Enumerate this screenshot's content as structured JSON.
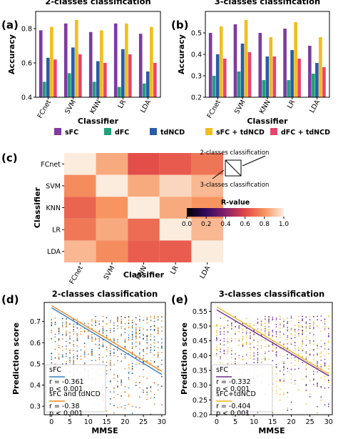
{
  "panel_labels": [
    "(a)",
    "(b)",
    "(c)",
    "(d)",
    "(e)"
  ],
  "colors": {
    "sFC": "#7e3b9f",
    "dFC": "#21a07c",
    "tdNCD": "#2b5ca8",
    "sFC + tdNCD": "#f3be1c",
    "dFC + tdNCD": "#e8456e",
    "scatter_sfc": "#3a7ec0",
    "scatter_combo": "#ef8a22",
    "e_line_sfc": "#6b2d8c",
    "e_line_combo": "#f0b31d"
  },
  "legend_a_b": [
    "sFC",
    "dFC",
    "tdNCD",
    "sFC + tdNCD",
    "dFC + tdNCD"
  ],
  "triangle_legend": {
    "top": "2-classes classification",
    "bottom": "3-classes classification"
  },
  "chart_data": [
    {
      "type": "bar",
      "title": "2-classes classification",
      "xlabel": "Classifier",
      "ylabel": "Accuracy",
      "ylim": [
        0.4,
        0.9
      ],
      "yticks": [
        "0.4",
        "0.6",
        "0.8"
      ],
      "categories": [
        "FCnet",
        "SVM",
        "KNN",
        "LR",
        "LDA"
      ],
      "series": [
        {
          "name": "sFC",
          "values": [
            0.79,
            0.83,
            0.78,
            0.83,
            0.77
          ]
        },
        {
          "name": "dFC",
          "values": [
            0.49,
            0.54,
            0.49,
            0.46,
            0.48
          ]
        },
        {
          "name": "tdNCD",
          "values": [
            0.63,
            0.69,
            0.61,
            0.68,
            0.55
          ]
        },
        {
          "name": "sFC + tdNCD",
          "values": [
            0.81,
            0.85,
            0.79,
            0.83,
            0.81
          ]
        },
        {
          "name": "dFC + tdNCD",
          "values": [
            0.62,
            0.65,
            0.6,
            0.65,
            0.6
          ]
        }
      ]
    },
    {
      "type": "bar",
      "title": "3-classes classification",
      "xlabel": "Classifier",
      "ylabel": "Accuracy",
      "ylim": [
        0.2,
        0.6
      ],
      "yticks": [
        "0.2",
        "0.3",
        "0.4",
        "0.5"
      ],
      "categories": [
        "FCnet",
        "SVM",
        "KNN",
        "LR",
        "LDA"
      ],
      "series": [
        {
          "name": "sFC",
          "values": [
            0.5,
            0.54,
            0.5,
            0.52,
            0.44
          ]
        },
        {
          "name": "dFC",
          "values": [
            0.3,
            0.32,
            0.28,
            0.28,
            0.31
          ]
        },
        {
          "name": "tdNCD",
          "values": [
            0.4,
            0.45,
            0.39,
            0.42,
            0.36
          ]
        },
        {
          "name": "sFC + tdNCD",
          "values": [
            0.53,
            0.56,
            0.48,
            0.55,
            0.48
          ]
        },
        {
          "name": "dFC + tdNCD",
          "values": [
            0.38,
            0.41,
            0.39,
            0.38,
            0.34
          ]
        }
      ]
    },
    {
      "type": "heatmap",
      "xlabel": "Classifier",
      "ylabel": "Classifier",
      "colorbar_label": "R-value",
      "colorbar_ticks": [
        "0.0",
        "0.2",
        "0.4",
        "0.6",
        "0.8",
        "1.0"
      ],
      "x": [
        "FCnet",
        "SVM",
        "KNN",
        "LR",
        "LDA"
      ],
      "y": [
        "FCnet",
        "SVM",
        "KNN",
        "LR",
        "LDA"
      ],
      "values": [
        [
          1.0,
          0.85,
          0.62,
          0.65,
          0.72
        ],
        [
          0.78,
          1.0,
          0.85,
          0.95,
          0.88
        ],
        [
          0.68,
          0.8,
          1.0,
          0.85,
          0.8
        ],
        [
          0.73,
          0.85,
          0.7,
          1.0,
          0.88
        ],
        [
          0.88,
          0.78,
          0.66,
          0.66,
          1.0
        ]
      ]
    },
    {
      "type": "scatter",
      "title": "2-classes classification",
      "xlabel": "MMSE",
      "ylabel": "Prediction score",
      "xlim": [
        -2,
        31
      ],
      "ylim": [
        0.26,
        0.79
      ],
      "xticks": [
        "0",
        "5",
        "10",
        "15",
        "20",
        "25",
        "30"
      ],
      "yticks": [
        "0.3",
        "0.4",
        "0.5",
        "0.6",
        "0.7"
      ],
      "series": [
        {
          "name": "sFC",
          "stats": [
            "r = -0.361",
            "p < 0.001"
          ],
          "fit": [
            [
              0,
              0.765
            ],
            [
              30,
              0.45
            ]
          ]
        },
        {
          "name": "sFC and tdNCD",
          "stats": [
            "r = -0.38",
            "p < 0.001"
          ],
          "fit": [
            [
              0,
              0.775
            ],
            [
              30,
              0.465
            ]
          ]
        }
      ]
    },
    {
      "type": "scatter",
      "title": "3-classes classification",
      "xlabel": "MMSE",
      "ylabel": "Prediction score",
      "xlim": [
        -1.5,
        31
      ],
      "ylim": [
        0.2,
        0.58
      ],
      "xticks": [
        "0",
        "5",
        "10",
        "15",
        "20",
        "25",
        "30"
      ],
      "yticks": [
        "0.20",
        "0.25",
        "0.30",
        "0.35",
        "0.40",
        "0.45",
        "0.50",
        "0.55"
      ],
      "series": [
        {
          "name": "sFC",
          "stats": [
            "r = -0.332",
            "p < 0.001"
          ],
          "fit": [
            [
              0,
              0.555
            ],
            [
              30,
              0.332
            ]
          ]
        },
        {
          "name": "sFC+tdNCD",
          "stats": [
            "r = -0.404",
            "p < 0.001"
          ],
          "fit": [
            [
              0,
              0.565
            ],
            [
              30,
              0.338
            ]
          ]
        }
      ]
    }
  ]
}
